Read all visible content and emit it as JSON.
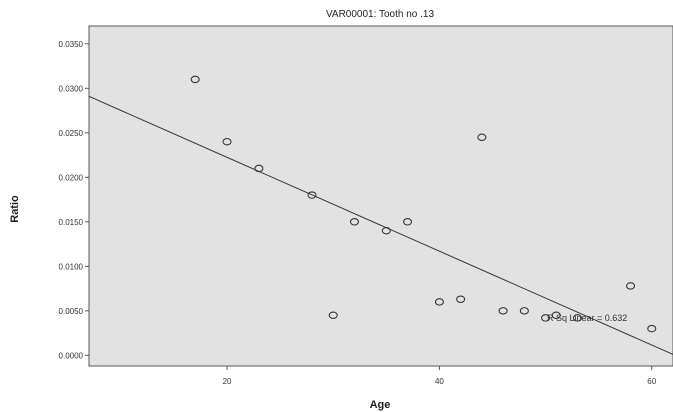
{
  "chart_data": {
    "type": "scatter",
    "title": "VAR00001: Tooth no .13",
    "xlabel": "Age",
    "ylabel": "Ratio",
    "xlim": [
      7,
      62
    ],
    "ylim": [
      -0.0012,
      0.037
    ],
    "x_ticks": [
      {
        "value": 20,
        "label": "20"
      },
      {
        "value": 40,
        "label": "40"
      },
      {
        "value": 60,
        "label": "60"
      }
    ],
    "y_ticks": [
      {
        "value": 0.0,
        "label": "0.0000"
      },
      {
        "value": 0.005,
        "label": "0.0050"
      },
      {
        "value": 0.01,
        "label": "0.0100"
      },
      {
        "value": 0.015,
        "label": "0.0150"
      },
      {
        "value": 0.02,
        "label": "0.0200"
      },
      {
        "value": 0.025,
        "label": "0.0250"
      },
      {
        "value": 0.03,
        "label": "0.0300"
      },
      {
        "value": 0.035,
        "label": "0.0350"
      }
    ],
    "points": [
      {
        "x": 17,
        "y": 0.031
      },
      {
        "x": 20,
        "y": 0.024
      },
      {
        "x": 23,
        "y": 0.021
      },
      {
        "x": 28,
        "y": 0.018
      },
      {
        "x": 30,
        "y": 0.0045
      },
      {
        "x": 32,
        "y": 0.015
      },
      {
        "x": 35,
        "y": 0.014
      },
      {
        "x": 37,
        "y": 0.015
      },
      {
        "x": 40,
        "y": 0.006
      },
      {
        "x": 42,
        "y": 0.0063
      },
      {
        "x": 44,
        "y": 0.0245
      },
      {
        "x": 46,
        "y": 0.005
      },
      {
        "x": 48,
        "y": 0.005
      },
      {
        "x": 50,
        "y": 0.0042
      },
      {
        "x": 51,
        "y": 0.0045
      },
      {
        "x": 53,
        "y": 0.0042
      },
      {
        "x": 58,
        "y": 0.0078
      },
      {
        "x": 60,
        "y": 0.003
      }
    ],
    "fit_line": {
      "type": "linear",
      "x": [
        7,
        62
      ],
      "y": [
        0.0291,
        0.0001
      ],
      "label": "R Sq Linear = 0.632"
    },
    "grid": false,
    "colors": {
      "plot_background": "#e2e2e2",
      "marker_stroke": "#333333",
      "line": "#333333"
    }
  }
}
